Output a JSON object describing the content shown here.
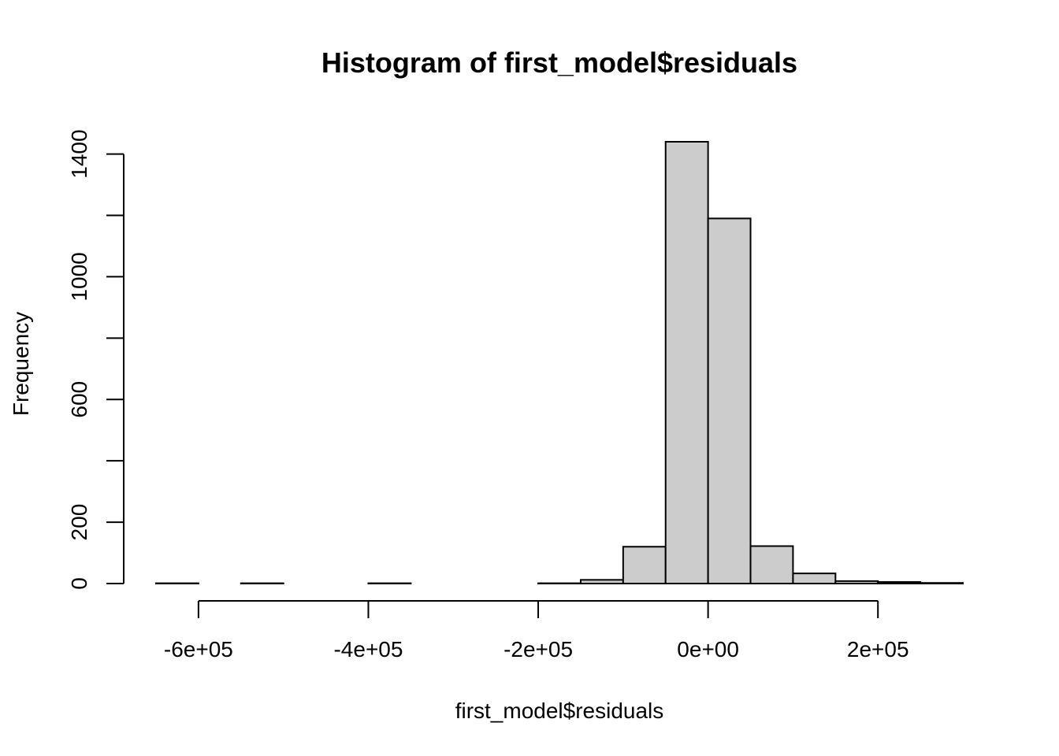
{
  "chart_data": {
    "type": "bar",
    "title": "Histogram of first_model$residuals",
    "xlabel": "first_model$residuals",
    "ylabel": "Frequency",
    "bin_edges": [
      -650000,
      -600000,
      -550000,
      -500000,
      -450000,
      -400000,
      -350000,
      -300000,
      -250000,
      -200000,
      -150000,
      -100000,
      -50000,
      0,
      50000,
      100000,
      150000,
      200000,
      250000,
      300000
    ],
    "values": [
      1,
      0,
      1,
      0,
      0,
      1,
      0,
      0,
      0,
      1,
      12,
      120,
      1440,
      1190,
      122,
      33,
      8,
      5,
      2
    ],
    "xlim": [
      -650000,
      300000
    ],
    "ylim": [
      0,
      1440
    ],
    "x_ticks": [
      -600000,
      -400000,
      -200000,
      0,
      200000
    ],
    "x_tick_labels": [
      "-6e+05",
      "-4e+05",
      "-2e+05",
      "0e+00",
      "2e+05"
    ],
    "y_ticks": [
      0,
      200,
      400,
      600,
      800,
      1000,
      1200,
      1400
    ],
    "y_tick_labels": [
      "0",
      "200",
      "",
      "600",
      "",
      "1000",
      "",
      "1400"
    ],
    "bar_fill": "#cccccc",
    "bar_stroke": "#000000",
    "grid": false
  }
}
